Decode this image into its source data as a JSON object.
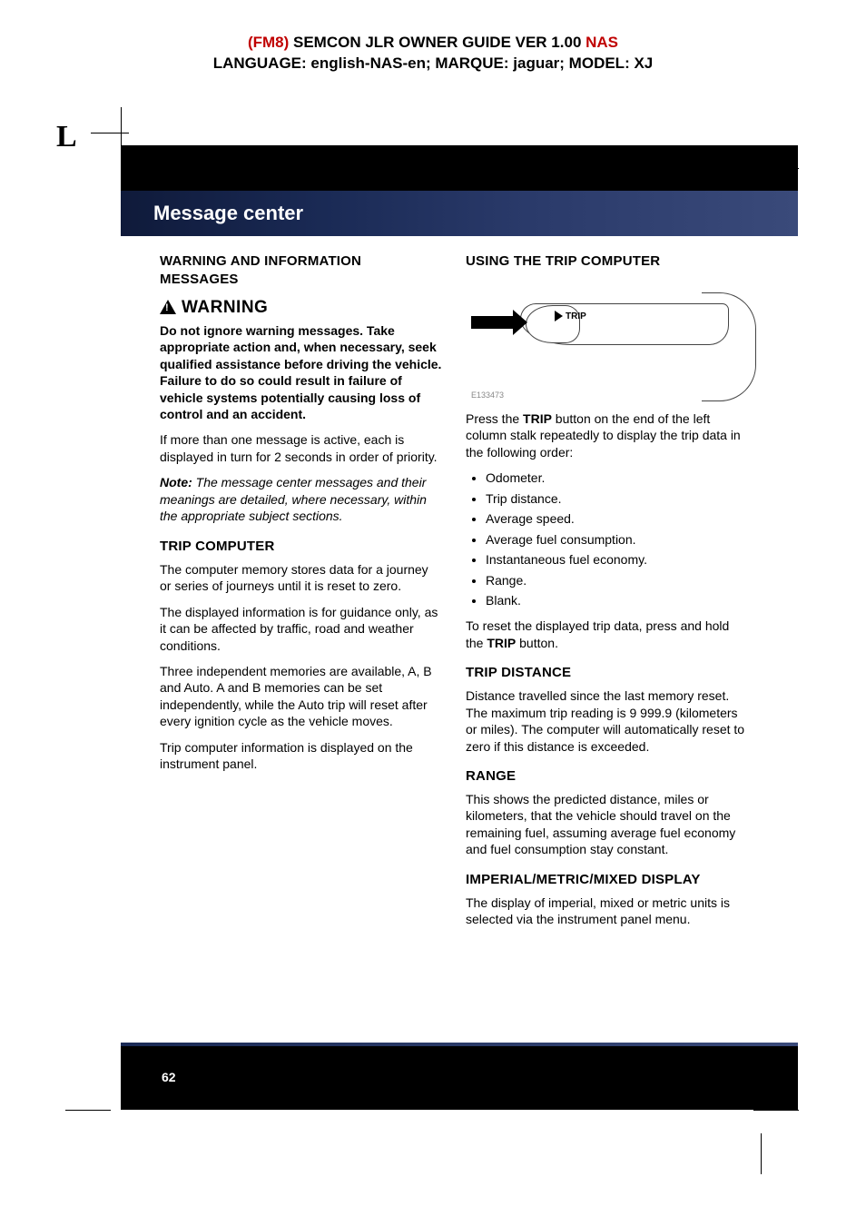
{
  "header": {
    "line1_fm8": "(FM8)",
    "line1_mid": " SEMCON JLR OWNER GUIDE VER 1.00 ",
    "line1_nas": "NAS",
    "line2": "LANGUAGE: english-NAS-en;   MARQUE: jaguar;   MODEL: XJ"
  },
  "crop_letter": "L",
  "chapter_title": "Message center",
  "page_number": "62",
  "left": {
    "h_warning_msgs": "WARNING AND INFORMATION MESSAGES",
    "warning_word": "WARNING",
    "warning_text": "Do not ignore warning messages. Take appropriate action and, when necessary, seek qualified assistance before driving the vehicle. Failure to do so could result in failure of vehicle systems potentially causing loss of control and an accident.",
    "p_multi": "If more than one message is active, each is displayed in turn for 2 seconds in order of priority.",
    "note_lead": "Note:",
    "note_body": " The message center messages and their meanings are detailed, where necessary, within the appropriate subject sections.",
    "h_trip": "TRIP COMPUTER",
    "p_t1": "The computer memory stores data for a journey or series of journeys until it is reset to zero.",
    "p_t2": "The displayed information is for guidance only, as it can be affected by traffic, road and weather conditions.",
    "p_t3": "Three independent memories are available, A, B and Auto. A and B memories can be set independently, while the Auto trip will reset after every ignition cycle as the vehicle moves.",
    "p_t4": "Trip computer information is displayed on the instrument panel."
  },
  "right": {
    "h_using": "USING THE TRIP COMPUTER",
    "fig_trip": "TRIP",
    "fig_code": "E133473",
    "p_press_a": "Press the ",
    "p_press_trip": "TRIP",
    "p_press_b": " button on the end of the left column stalk repeatedly to display the trip data in the following order:",
    "items": [
      "Odometer.",
      "Trip distance.",
      "Average speed.",
      "Average fuel consumption.",
      "Instantaneous fuel economy.",
      "Range.",
      "Blank."
    ],
    "p_reset_a": "To reset the displayed trip data, press and hold the ",
    "p_reset_trip": "TRIP",
    "p_reset_b": " button.",
    "h_dist": "TRIP DISTANCE",
    "p_dist": "Distance travelled since the last memory reset. The maximum trip reading is 9 999.9 (kilometers or miles). The computer will automatically reset to zero if this distance is exceeded.",
    "h_range": "RANGE",
    "p_range": "This shows the predicted distance, miles or kilometers, that the vehicle should travel on the remaining fuel, assuming average fuel economy and fuel consumption stay constant.",
    "h_disp": "IMPERIAL/METRIC/MIXED DISPLAY",
    "p_disp": "The display of imperial, mixed or metric units is selected via the instrument panel menu."
  }
}
